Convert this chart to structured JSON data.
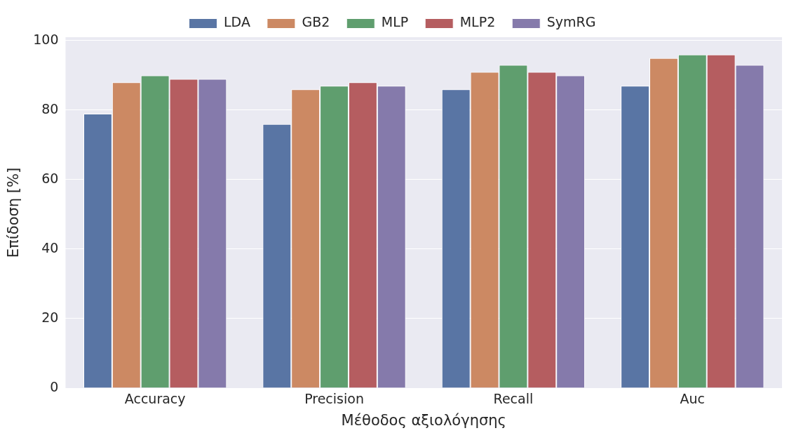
{
  "chart_data": {
    "type": "bar",
    "xlabel": "Μέθοδος αξιολόγησης",
    "ylabel": "Επίδοση [%]",
    "categories": [
      "Accuracy",
      "Precision",
      "Recall",
      "Auc"
    ],
    "series": [
      {
        "name": "LDA",
        "color": "#5975a4",
        "values": [
          79,
          76,
          86,
          87
        ]
      },
      {
        "name": "GB2",
        "color": "#cc8963",
        "values": [
          88,
          86,
          91,
          95
        ]
      },
      {
        "name": "MLP",
        "color": "#5f9e6e",
        "values": [
          90,
          87,
          93,
          96
        ]
      },
      {
        "name": "MLP2",
        "color": "#b55d60",
        "values": [
          89,
          88,
          91,
          96
        ]
      },
      {
        "name": "SymRG",
        "color": "#857aab",
        "values": [
          89,
          87,
          90,
          93
        ]
      }
    ],
    "ylim": [
      0,
      101
    ],
    "yticks": [
      0,
      20,
      40,
      60,
      80,
      100
    ],
    "grid": "y",
    "legend": "top"
  }
}
